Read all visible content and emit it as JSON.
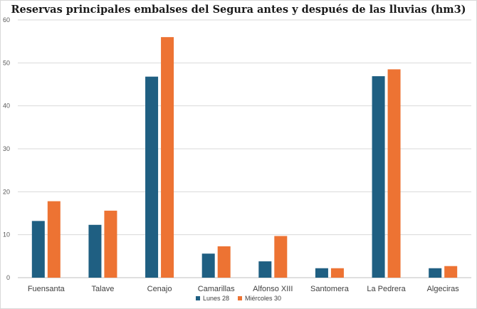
{
  "chart_data": {
    "type": "bar",
    "title": "Reservas principales embalses del Segura antes y después de las lluvias (hm3)",
    "xlabel": "",
    "ylabel": "",
    "ylim": [
      0,
      60
    ],
    "yticks": [
      0,
      10,
      20,
      30,
      40,
      50,
      60
    ],
    "categories": [
      "Fuensanta",
      "Talave",
      "Cenajo",
      "Camarillas",
      "Alfonso XIII",
      "Santomera",
      "La Pedrera",
      "Algeciras"
    ],
    "series": [
      {
        "name": "Lunes 28",
        "color": "#1f5f82",
        "values": [
          13.2,
          12.3,
          46.8,
          5.6,
          3.8,
          2.2,
          46.9,
          2.2
        ]
      },
      {
        "name": "Miércoles 30",
        "color": "#ed7333",
        "values": [
          17.8,
          15.6,
          56.0,
          7.3,
          9.7,
          2.2,
          48.5,
          2.7
        ]
      }
    ],
    "gridlines": true,
    "legend_position": "bottom"
  }
}
